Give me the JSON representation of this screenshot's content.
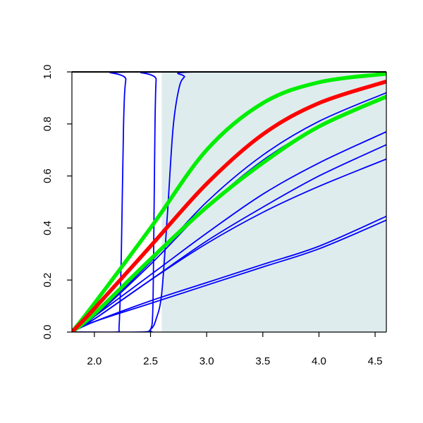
{
  "chart_data": {
    "type": "line",
    "title": "",
    "xlabel": "",
    "ylabel": "",
    "xlim": [
      1.8,
      4.6
    ],
    "ylim": [
      0.0,
      1.0
    ],
    "x_ticks": [
      "2.0",
      "2.5",
      "3.0",
      "3.5",
      "4.0",
      "4.5"
    ],
    "y_ticks": [
      "0.0",
      "0.2",
      "0.4",
      "0.6",
      "0.8",
      "1.0"
    ],
    "grid": false,
    "legend": "none",
    "shaded_region": {
      "x_from": 2.6,
      "x_to": 4.6,
      "color": "#dfeced"
    },
    "series": [
      {
        "color": "#0000ff",
        "width": "thin",
        "points": [
          [
            1.8,
            0.0
          ],
          [
            2.2,
            0.0
          ],
          [
            2.22,
            0.02
          ],
          [
            2.24,
            0.3
          ],
          [
            2.26,
            0.8
          ],
          [
            2.28,
            0.97
          ],
          [
            2.32,
            1.0
          ],
          [
            4.6,
            1.0
          ]
        ]
      },
      {
        "color": "#0000ff",
        "width": "thin",
        "points": [
          [
            1.8,
            0.0
          ],
          [
            2.45,
            0.0
          ],
          [
            2.5,
            0.01
          ],
          [
            2.52,
            0.08
          ],
          [
            2.53,
            0.4
          ],
          [
            2.54,
            0.8
          ],
          [
            2.55,
            0.97
          ],
          [
            2.57,
            1.0
          ],
          [
            4.6,
            1.0
          ]
        ]
      },
      {
        "color": "#0000ff",
        "width": "thin",
        "points": [
          [
            1.8,
            0.0
          ],
          [
            2.4,
            0.0
          ],
          [
            2.5,
            0.01
          ],
          [
            2.55,
            0.05
          ],
          [
            2.6,
            0.15
          ],
          [
            2.65,
            0.45
          ],
          [
            2.7,
            0.78
          ],
          [
            2.75,
            0.93
          ],
          [
            2.8,
            0.98
          ],
          [
            2.9,
            1.0
          ],
          [
            4.6,
            1.0
          ]
        ]
      },
      {
        "color": "#0000ff",
        "width": "thin",
        "points": [
          [
            1.8,
            0.0
          ],
          [
            2.0,
            0.06
          ],
          [
            2.5,
            0.22
          ],
          [
            3.0,
            0.38
          ],
          [
            3.5,
            0.53
          ],
          [
            4.0,
            0.65
          ],
          [
            4.6,
            0.77
          ]
        ]
      },
      {
        "color": "#0000ff",
        "width": "thin",
        "points": [
          [
            1.8,
            0.0
          ],
          [
            2.0,
            0.05
          ],
          [
            2.5,
            0.2
          ],
          [
            3.0,
            0.35
          ],
          [
            3.5,
            0.48
          ],
          [
            4.0,
            0.6
          ],
          [
            4.6,
            0.72
          ]
        ]
      },
      {
        "color": "#0000ff",
        "width": "thin",
        "points": [
          [
            1.8,
            0.0
          ],
          [
            2.0,
            0.05
          ],
          [
            2.5,
            0.2
          ],
          [
            3.0,
            0.34
          ],
          [
            3.5,
            0.46
          ],
          [
            4.0,
            0.56
          ],
          [
            4.6,
            0.665
          ]
        ]
      },
      {
        "color": "#0000ff",
        "width": "thin",
        "points": [
          [
            1.8,
            0.0
          ],
          [
            2.0,
            0.04
          ],
          [
            2.5,
            0.12
          ],
          [
            3.0,
            0.19
          ],
          [
            3.5,
            0.26
          ],
          [
            4.0,
            0.33
          ],
          [
            4.6,
            0.445
          ]
        ]
      },
      {
        "color": "#0000ff",
        "width": "thin",
        "points": [
          [
            1.8,
            0.0
          ],
          [
            2.0,
            0.04
          ],
          [
            2.5,
            0.11
          ],
          [
            3.0,
            0.18
          ],
          [
            3.5,
            0.25
          ],
          [
            4.0,
            0.32
          ],
          [
            4.6,
            0.43
          ]
        ]
      },
      {
        "color": "#0000ff",
        "width": "thin",
        "points": [
          [
            1.8,
            0.0
          ],
          [
            2.0,
            0.06
          ],
          [
            2.5,
            0.27
          ],
          [
            3.0,
            0.5
          ],
          [
            3.5,
            0.68
          ],
          [
            4.0,
            0.81
          ],
          [
            4.6,
            0.92
          ]
        ]
      },
      {
        "color": "#0000ff",
        "width": "thin",
        "points": [
          [
            1.8,
            0.0
          ],
          [
            2.0,
            0.06
          ],
          [
            2.5,
            0.26
          ],
          [
            3.0,
            0.48
          ],
          [
            3.5,
            0.66
          ],
          [
            4.0,
            0.79
          ],
          [
            4.6,
            0.9
          ]
        ]
      },
      {
        "color": "#00ee00",
        "width": "thick",
        "points": [
          [
            1.8,
            0.0
          ],
          [
            2.0,
            0.07
          ],
          [
            2.5,
            0.28
          ],
          [
            3.0,
            0.48
          ],
          [
            3.5,
            0.65
          ],
          [
            4.0,
            0.79
          ],
          [
            4.6,
            0.905
          ]
        ]
      },
      {
        "color": "#00ee00",
        "width": "thick",
        "points": [
          [
            1.8,
            0.0
          ],
          [
            2.0,
            0.11
          ],
          [
            2.5,
            0.4
          ],
          [
            3.0,
            0.7
          ],
          [
            3.5,
            0.88
          ],
          [
            4.0,
            0.96
          ],
          [
            4.6,
            0.993
          ]
        ]
      },
      {
        "color": "#ff0000",
        "width": "thick",
        "points": [
          [
            1.8,
            0.0
          ],
          [
            2.0,
            0.09
          ],
          [
            2.5,
            0.33
          ],
          [
            3.0,
            0.57
          ],
          [
            3.5,
            0.76
          ],
          [
            4.0,
            0.88
          ],
          [
            4.6,
            0.963
          ]
        ]
      }
    ]
  }
}
